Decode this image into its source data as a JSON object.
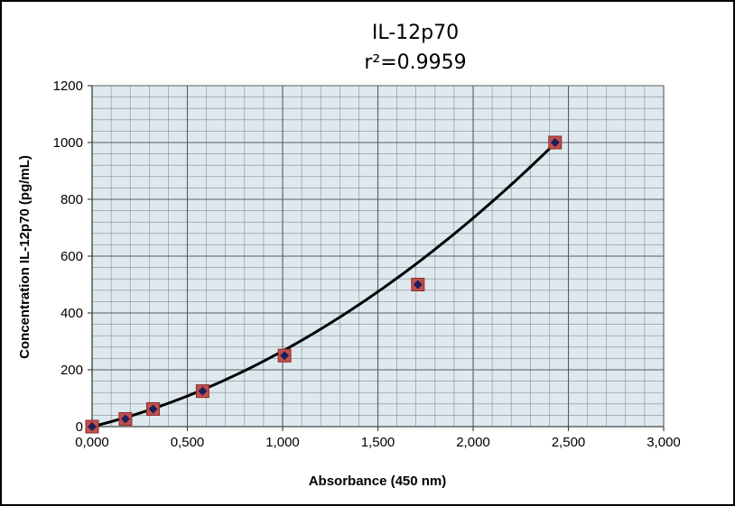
{
  "chart_data": {
    "type": "scatter",
    "title": "IL-12p70",
    "subtitle": "r²=0.9959",
    "xlabel": "Absorbance (450 nm)",
    "ylabel": "Concentration IL-12p70 (pg/mL)",
    "xlim": [
      0,
      3
    ],
    "ylim": [
      0,
      1200
    ],
    "x_ticks": [
      "0,000",
      "0,500",
      "1,000",
      "1,500",
      "2,000",
      "2,500",
      "3,000"
    ],
    "y_ticks": [
      "0",
      "200",
      "400",
      "600",
      "800",
      "1000",
      "1200"
    ],
    "grid": true,
    "colors": {
      "plot_background": "#dde9ef",
      "grid_line": "#8c8c8c",
      "square_marker": "#c0504d",
      "diamond_marker": "#1f1f5c",
      "fit_line": "#000000"
    },
    "series": [
      {
        "marker": "square-and-diamond",
        "x": [
          0.0,
          0.175,
          0.32,
          0.58,
          1.01,
          1.71,
          2.43
        ],
        "y": [
          0,
          27,
          62,
          125,
          250,
          500,
          1000
        ]
      }
    ],
    "fit": {
      "type": "polynomial",
      "r_squared": 0.9959,
      "coefficients": [
        0,
        165,
        101
      ]
    }
  }
}
